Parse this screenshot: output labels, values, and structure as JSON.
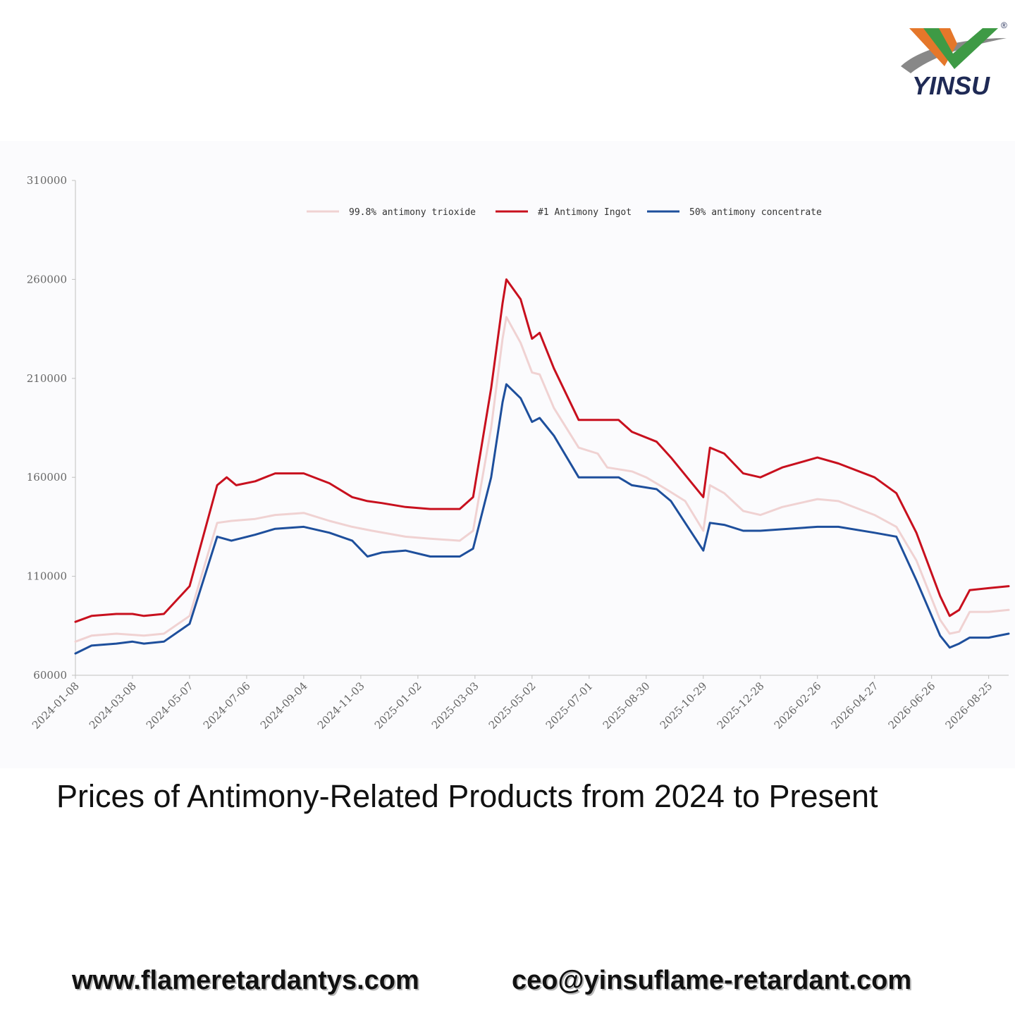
{
  "brand": {
    "name": "YINSU",
    "registered_mark": "®",
    "colors": {
      "orange": "#e5772a",
      "green": "#3e9a45",
      "gray": "#888888",
      "text": "#1f2a55"
    }
  },
  "caption": "Prices of Antimony-Related Products from 2024 to Present",
  "footer": {
    "website": "www.flameretardantys.com",
    "email": "ceo@yinsuflame-retardant.com"
  },
  "chart_data": {
    "type": "line",
    "title": "",
    "xlabel": "",
    "ylabel": "",
    "ylim": [
      60000,
      310000
    ],
    "yticks": [
      "310000",
      "260000",
      "210000",
      "160000",
      "110000",
      "60000"
    ],
    "x_start": "2024-01-08",
    "x_end": "2026-09-15",
    "xticks": [
      "2024-01-08",
      "2024-03-08",
      "2024-05-07",
      "2024-07-06",
      "2024-09-04",
      "2024-11-03",
      "2025-01-02",
      "2025-03-03",
      "2025-05-02",
      "2025-07-01",
      "2025-08-30",
      "2025-10-29",
      "2025-12-28",
      "2026-02-26",
      "2026-04-27",
      "2026-06-26",
      "2026-08-25"
    ],
    "grid": false,
    "legend_position": "top-center",
    "series": [
      {
        "name": "99.8% antimony trioxide",
        "color": "#f0d2d2",
        "points": [
          [
            "2024-01-08",
            77000
          ],
          [
            "2024-01-25",
            80000
          ],
          [
            "2024-02-20",
            81000
          ],
          [
            "2024-03-20",
            80000
          ],
          [
            "2024-04-10",
            81000
          ],
          [
            "2024-05-07",
            90000
          ],
          [
            "2024-06-05",
            137000
          ],
          [
            "2024-06-20",
            138000
          ],
          [
            "2024-07-15",
            139000
          ],
          [
            "2024-08-05",
            141000
          ],
          [
            "2024-09-04",
            142000
          ],
          [
            "2024-10-01",
            138000
          ],
          [
            "2024-10-25",
            135000
          ],
          [
            "2024-11-15",
            133000
          ],
          [
            "2024-12-20",
            130000
          ],
          [
            "2025-01-15",
            129000
          ],
          [
            "2025-02-15",
            128000
          ],
          [
            "2025-03-01",
            133000
          ],
          [
            "2025-03-20",
            185000
          ],
          [
            "2025-04-01",
            230000
          ],
          [
            "2025-04-05",
            241000
          ],
          [
            "2025-04-20",
            228000
          ],
          [
            "2025-05-02",
            213000
          ],
          [
            "2025-05-10",
            212000
          ],
          [
            "2025-05-25",
            195000
          ],
          [
            "2025-06-20",
            175000
          ],
          [
            "2025-07-10",
            172000
          ],
          [
            "2025-07-20",
            165000
          ],
          [
            "2025-08-15",
            163000
          ],
          [
            "2025-08-30",
            160000
          ],
          [
            "2025-09-20",
            154000
          ],
          [
            "2025-10-10",
            148000
          ],
          [
            "2025-10-29",
            133000
          ],
          [
            "2025-11-05",
            156000
          ],
          [
            "2025-11-20",
            152000
          ],
          [
            "2025-12-10",
            143000
          ],
          [
            "2025-12-28",
            141000
          ],
          [
            "2026-01-20",
            145000
          ],
          [
            "2026-02-26",
            149000
          ],
          [
            "2026-03-20",
            148000
          ],
          [
            "2026-04-27",
            141000
          ],
          [
            "2026-05-20",
            135000
          ],
          [
            "2026-06-10",
            118000
          ],
          [
            "2026-07-05",
            88000
          ],
          [
            "2026-07-15",
            81000
          ],
          [
            "2026-07-25",
            82000
          ],
          [
            "2026-08-05",
            92000
          ],
          [
            "2026-08-25",
            92000
          ],
          [
            "2026-09-15",
            93000
          ]
        ]
      },
      {
        "name": "#1 Antimony Ingot",
        "color": "#c8101e",
        "points": [
          [
            "2024-01-08",
            87000
          ],
          [
            "2024-01-25",
            90000
          ],
          [
            "2024-02-20",
            91000
          ],
          [
            "2024-03-08",
            91000
          ],
          [
            "2024-03-20",
            90000
          ],
          [
            "2024-04-10",
            91000
          ],
          [
            "2024-05-07",
            105000
          ],
          [
            "2024-06-05",
            156000
          ],
          [
            "2024-06-15",
            160000
          ],
          [
            "2024-06-25",
            156000
          ],
          [
            "2024-07-15",
            158000
          ],
          [
            "2024-08-05",
            162000
          ],
          [
            "2024-09-04",
            162000
          ],
          [
            "2024-10-01",
            157000
          ],
          [
            "2024-10-25",
            150000
          ],
          [
            "2024-11-10",
            148000
          ],
          [
            "2024-11-25",
            147000
          ],
          [
            "2024-12-20",
            145000
          ],
          [
            "2025-01-15",
            144000
          ],
          [
            "2025-02-15",
            144000
          ],
          [
            "2025-03-01",
            150000
          ],
          [
            "2025-03-20",
            205000
          ],
          [
            "2025-04-01",
            248000
          ],
          [
            "2025-04-05",
            260000
          ],
          [
            "2025-04-20",
            250000
          ],
          [
            "2025-05-02",
            230000
          ],
          [
            "2025-05-10",
            233000
          ],
          [
            "2025-05-25",
            215000
          ],
          [
            "2025-06-20",
            189000
          ],
          [
            "2025-08-01",
            189000
          ],
          [
            "2025-08-15",
            183000
          ],
          [
            "2025-09-10",
            178000
          ],
          [
            "2025-09-25",
            170000
          ],
          [
            "2025-10-29",
            150000
          ],
          [
            "2025-11-05",
            175000
          ],
          [
            "2025-11-20",
            172000
          ],
          [
            "2025-12-10",
            162000
          ],
          [
            "2025-12-28",
            160000
          ],
          [
            "2026-01-20",
            165000
          ],
          [
            "2026-02-26",
            170000
          ],
          [
            "2026-03-20",
            167000
          ],
          [
            "2026-04-27",
            160000
          ],
          [
            "2026-05-20",
            152000
          ],
          [
            "2026-06-10",
            132000
          ],
          [
            "2026-07-05",
            100000
          ],
          [
            "2026-07-15",
            90000
          ],
          [
            "2026-07-25",
            93000
          ],
          [
            "2026-08-05",
            103000
          ],
          [
            "2026-08-25",
            104000
          ],
          [
            "2026-09-15",
            105000
          ]
        ]
      },
      {
        "name": "50% antimony concentrate",
        "color": "#1e4f9c",
        "points": [
          [
            "2024-01-08",
            71000
          ],
          [
            "2024-01-25",
            75000
          ],
          [
            "2024-02-20",
            76000
          ],
          [
            "2024-03-08",
            77000
          ],
          [
            "2024-03-20",
            76000
          ],
          [
            "2024-04-10",
            77000
          ],
          [
            "2024-05-07",
            86000
          ],
          [
            "2024-06-05",
            130000
          ],
          [
            "2024-06-20",
            128000
          ],
          [
            "2024-07-15",
            131000
          ],
          [
            "2024-08-05",
            134000
          ],
          [
            "2024-09-04",
            135000
          ],
          [
            "2024-10-01",
            132000
          ],
          [
            "2024-10-25",
            128000
          ],
          [
            "2024-11-10",
            120000
          ],
          [
            "2024-11-25",
            122000
          ],
          [
            "2024-12-20",
            123000
          ],
          [
            "2025-01-15",
            120000
          ],
          [
            "2025-02-15",
            120000
          ],
          [
            "2025-03-01",
            124000
          ],
          [
            "2025-03-20",
            160000
          ],
          [
            "2025-04-01",
            198000
          ],
          [
            "2025-04-05",
            207000
          ],
          [
            "2025-04-20",
            200000
          ],
          [
            "2025-05-02",
            188000
          ],
          [
            "2025-05-10",
            190000
          ],
          [
            "2025-05-25",
            181000
          ],
          [
            "2025-06-20",
            160000
          ],
          [
            "2025-08-01",
            160000
          ],
          [
            "2025-08-15",
            156000
          ],
          [
            "2025-09-10",
            154000
          ],
          [
            "2025-09-25",
            148000
          ],
          [
            "2025-10-29",
            123000
          ],
          [
            "2025-11-05",
            137000
          ],
          [
            "2025-11-20",
            136000
          ],
          [
            "2025-12-10",
            133000
          ],
          [
            "2025-12-28",
            133000
          ],
          [
            "2026-02-26",
            135000
          ],
          [
            "2026-03-20",
            135000
          ],
          [
            "2026-04-27",
            132000
          ],
          [
            "2026-05-20",
            130000
          ],
          [
            "2026-06-10",
            108000
          ],
          [
            "2026-07-05",
            80000
          ],
          [
            "2026-07-15",
            74000
          ],
          [
            "2026-07-25",
            76000
          ],
          [
            "2026-08-05",
            79000
          ],
          [
            "2026-08-25",
            79000
          ],
          [
            "2026-09-15",
            81000
          ]
        ]
      }
    ]
  }
}
